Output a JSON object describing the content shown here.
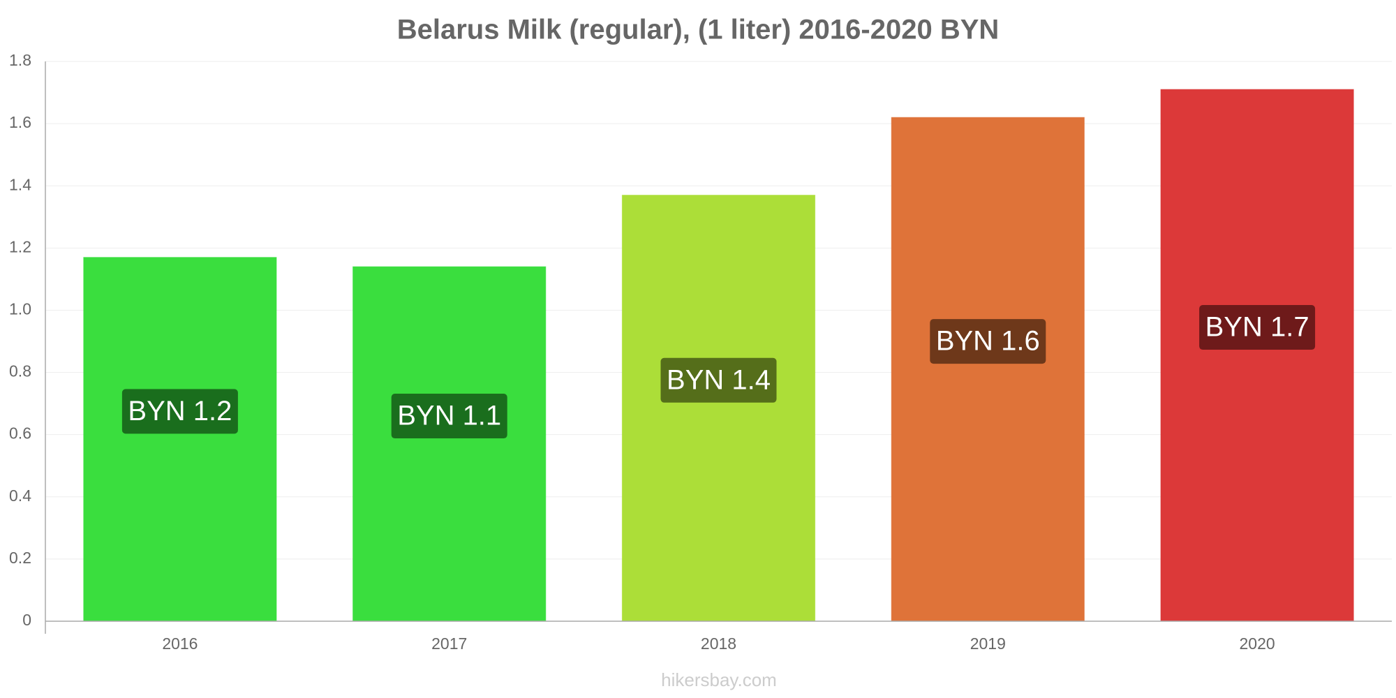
{
  "chart_data": {
    "type": "bar",
    "title": "Belarus Milk (regular), (1 liter) 2016-2020 BYN",
    "categories": [
      "2016",
      "2017",
      "2018",
      "2019",
      "2020"
    ],
    "values": [
      1.17,
      1.14,
      1.37,
      1.62,
      1.71
    ],
    "value_labels": [
      "BYN 1.2",
      "BYN 1.1",
      "BYN 1.4",
      "BYN 1.6",
      "BYN 1.7"
    ],
    "colors": [
      "#36dd3a",
      "#36dd3a",
      "#aadd34",
      "#de7035",
      "#db3535"
    ],
    "label_colors": [
      "#1a6e1d",
      "#1a6e1d",
      "#556e1a",
      "#6e381a",
      "#6e1a1a"
    ],
    "ylim": [
      0,
      1.8
    ],
    "yticks": [
      0,
      0.2,
      0.4,
      0.6,
      0.8,
      {
        "value": 1,
        "label": "1.0"
      },
      1.2,
      1.4,
      1.6,
      1.8
    ],
    "grid": true,
    "source": "hikersbay.com"
  }
}
